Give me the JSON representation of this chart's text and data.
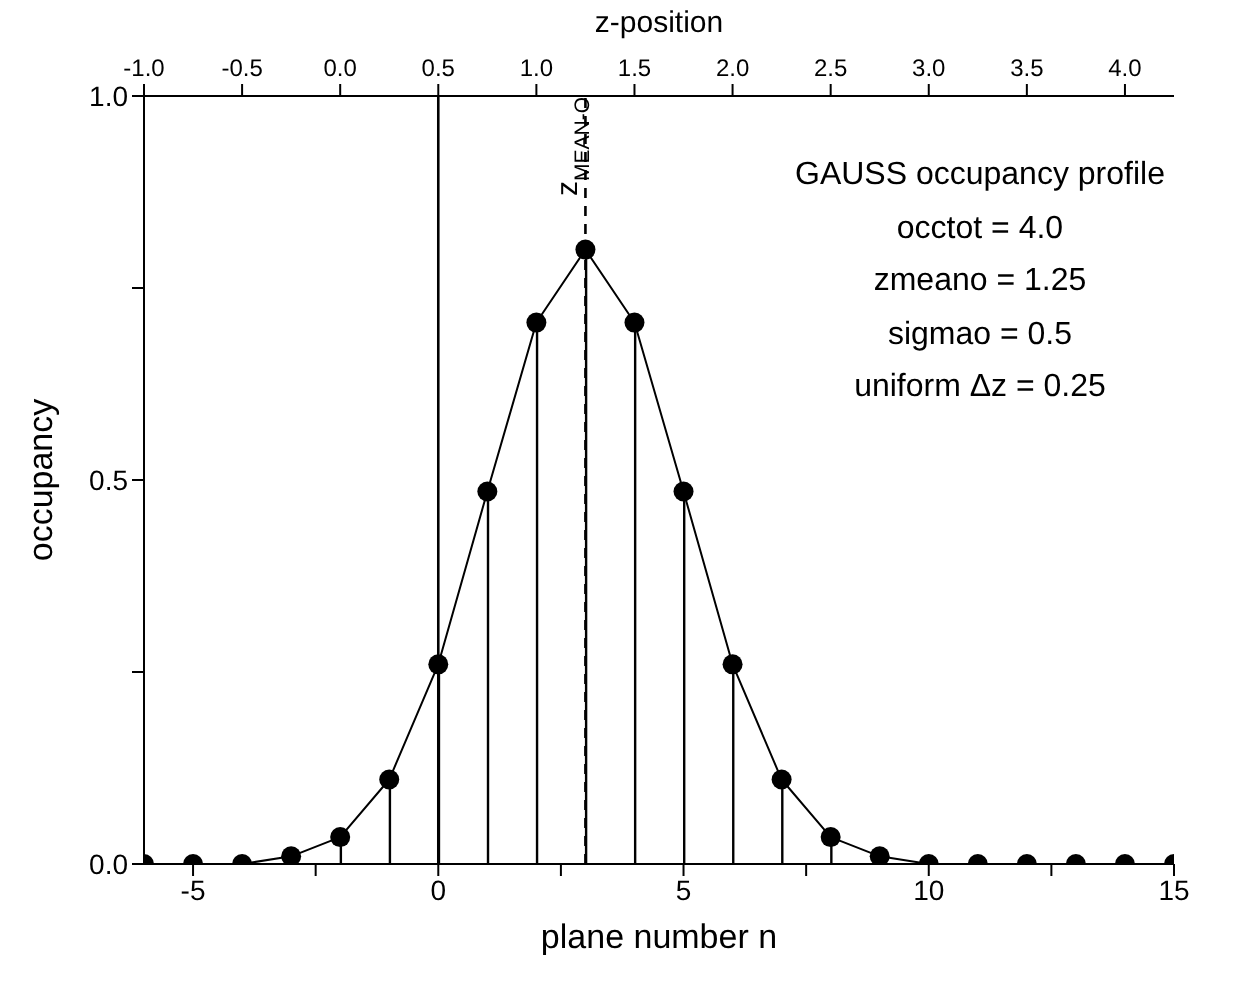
{
  "chart_data": {
    "type": "lollipop",
    "xlabel": "plane number n",
    "ylabel": "occupancy",
    "x2label": "z-position",
    "x": [
      -6,
      -5,
      -4,
      -3,
      -2,
      -1,
      0,
      1,
      2,
      3,
      4,
      5,
      6,
      7,
      8,
      9,
      10,
      11,
      12,
      13,
      14,
      15
    ],
    "series": [
      {
        "color": "#000000",
        "values": [
          0,
          0,
          0,
          0.01,
          0.035,
          0.11,
          0.26,
          0.485,
          0.705,
          0.8,
          0.705,
          0.485,
          0.26,
          0.11,
          0.035,
          0.01,
          0,
          0,
          0,
          0,
          0,
          0
        ]
      },
      {
        "type": "line",
        "color": "#000000",
        "values": [
          0,
          0,
          0,
          0.01,
          0.035,
          0.11,
          0.26,
          0.485,
          0.705,
          0.8,
          0.705,
          0.485,
          0.26,
          0.11,
          0.035,
          0.01,
          0,
          0,
          0,
          0,
          0,
          0
        ]
      }
    ],
    "xlim": [
      -6,
      15
    ],
    "xticks": [
      -5,
      {
        "value": -2.5,
        "label": null
      },
      0,
      {
        "value": 2.5,
        "label": null
      },
      5,
      {
        "value": 7.5,
        "label": null
      },
      10,
      {
        "value": 12.5,
        "label": null
      },
      15
    ],
    "ylim": [
      0,
      1
    ],
    "yticks": [
      {
        "value": 0,
        "label": "0.0"
      },
      {
        "value": 0.25,
        "label": null
      },
      0.5,
      {
        "value": 0.75,
        "label": null
      },
      {
        "value": 1,
        "label": "1.0"
      }
    ],
    "x2lim": [
      -1,
      4.25
    ],
    "x2ticks": [
      {
        "value": -1,
        "label": "-1.0"
      },
      -0.5,
      {
        "value": 0,
        "label": "0.0"
      },
      0.5,
      {
        "value": 1,
        "label": "1.0"
      },
      1.5,
      {
        "value": 2,
        "label": "2.0"
      },
      2.5,
      {
        "value": 3,
        "label": "3.0"
      },
      3.5,
      {
        "value": 4,
        "label": "4.0"
      }
    ],
    "ref_lines": [
      {
        "axis": "x",
        "value": 0,
        "color": "#000000",
        "line_style": "solid"
      },
      {
        "axis": "x",
        "value": 3,
        "label": "z$_{MEAN-O}$",
        "color": "#000000",
        "line_style": "dashed"
      }
    ],
    "annotations": [
      "GAUSS occupancy profile",
      "occtot = 4.0",
      "zmeano = 1.25",
      "sigmao = 0.5",
      "uniform Δz = 0.25"
    ],
    "line_style": "solid",
    "grid": false
  }
}
